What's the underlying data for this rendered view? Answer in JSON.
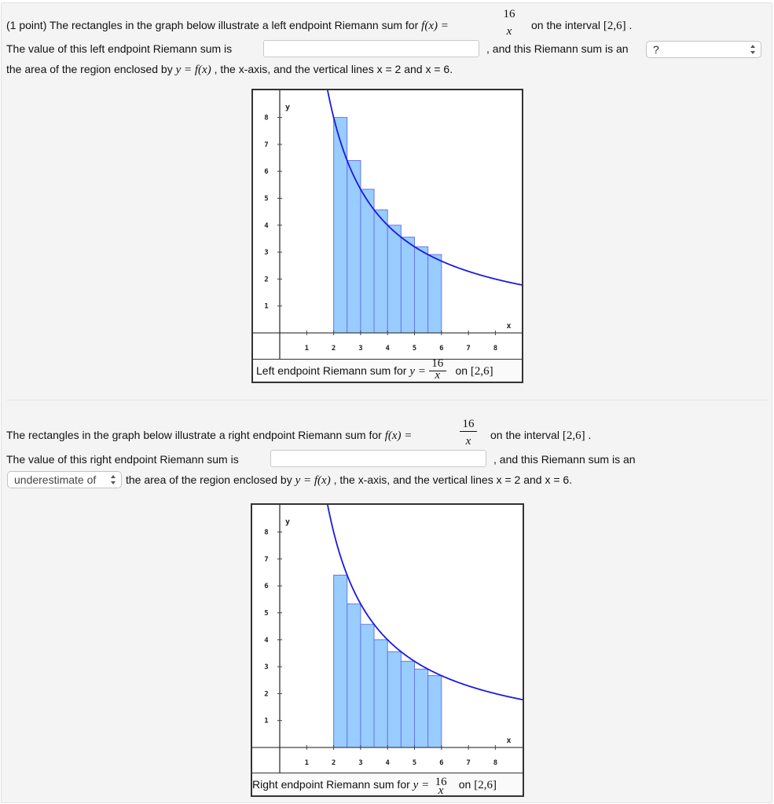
{
  "problem": {
    "points": "(1 point)",
    "part1": {
      "intro": "The rectangles in the graph below illustrate a left endpoint Riemann sum for",
      "function_lhs": "f(x) =",
      "fraction_num": "16",
      "fraction_den": "x",
      "interval_prefix": "on the interval",
      "interval": "[2,6]",
      "period": ".",
      "value_label": "The value of this left endpoint Riemann sum is",
      "value_input": "",
      "estimate_label": ", and this Riemann sum is an",
      "estimate_select": "?",
      "area_text_a": "the area of the region enclosed by",
      "area_math": "y = f(x)",
      "area_text_b": ", the x-axis, and the vertical lines x = 2 and x = 6.",
      "caption_text": "Left endpoint Riemann sum for",
      "caption_math": "y =",
      "caption_num": "16",
      "caption_den": "x",
      "caption_on": "on",
      "caption_interval": "[2,6]"
    },
    "part2": {
      "intro": "The rectangles in the graph below illustrate a right endpoint Riemann sum for",
      "function_lhs": "f(x) =",
      "fraction_num": "16",
      "fraction_den": "x",
      "interval_prefix": "on the interval",
      "interval": "[2,6]",
      "period": ".",
      "value_label": "The value of this right endpoint Riemann sum is",
      "value_input": "",
      "estimate_label": ", and this Riemann sum is an",
      "estimate_select": "underestimate of",
      "area_text_a": "the area of the region enclosed by",
      "area_math": "y = f(x)",
      "area_text_b": ", the x-axis, and the vertical lines x = 2 and x = 6.",
      "caption_text": "Right endpoint Riemann sum for",
      "caption_math": "y =",
      "caption_num": "16",
      "caption_den": "x",
      "caption_on": "on",
      "caption_interval": "[2,6]"
    }
  },
  "colors": {
    "rect_fill": "#99ccff",
    "rect_stroke": "#6677ee",
    "curve": "#1a1adf",
    "axis": "#222222"
  },
  "chart_data": [
    {
      "type": "bar",
      "title": "Left endpoint Riemann sum for y = 16/x on [2,6]",
      "xlabel": "x",
      "ylabel": "y",
      "x_ticks": [
        1,
        2,
        3,
        4,
        5,
        6,
        7,
        8
      ],
      "y_ticks": [
        1,
        2,
        3,
        4,
        5,
        6,
        7,
        8
      ],
      "xlim": [
        -1,
        9
      ],
      "ylim": [
        -1,
        9
      ],
      "curve": "y = 16/x",
      "rect_left_edges": [
        2,
        2.5,
        3,
        3.5,
        4,
        4.5,
        5,
        5.5
      ],
      "rect_width": 0.5,
      "values": [
        8,
        6.4,
        5.333,
        4.571,
        4,
        3.556,
        3.2,
        2.909
      ]
    },
    {
      "type": "bar",
      "title": "Right endpoint Riemann sum for y = 16/x on [2,6]",
      "xlabel": "x",
      "ylabel": "y",
      "x_ticks": [
        1,
        2,
        3,
        4,
        5,
        6,
        7,
        8
      ],
      "y_ticks": [
        1,
        2,
        3,
        4,
        5,
        6,
        7,
        8
      ],
      "xlim": [
        -1,
        9
      ],
      "ylim": [
        -1,
        9
      ],
      "curve": "y = 16/x",
      "rect_left_edges": [
        2,
        2.5,
        3,
        3.5,
        4,
        4.5,
        5,
        5.5
      ],
      "rect_width": 0.5,
      "values": [
        6.4,
        5.333,
        4.571,
        4,
        3.556,
        3.2,
        2.909,
        2.667
      ]
    }
  ]
}
